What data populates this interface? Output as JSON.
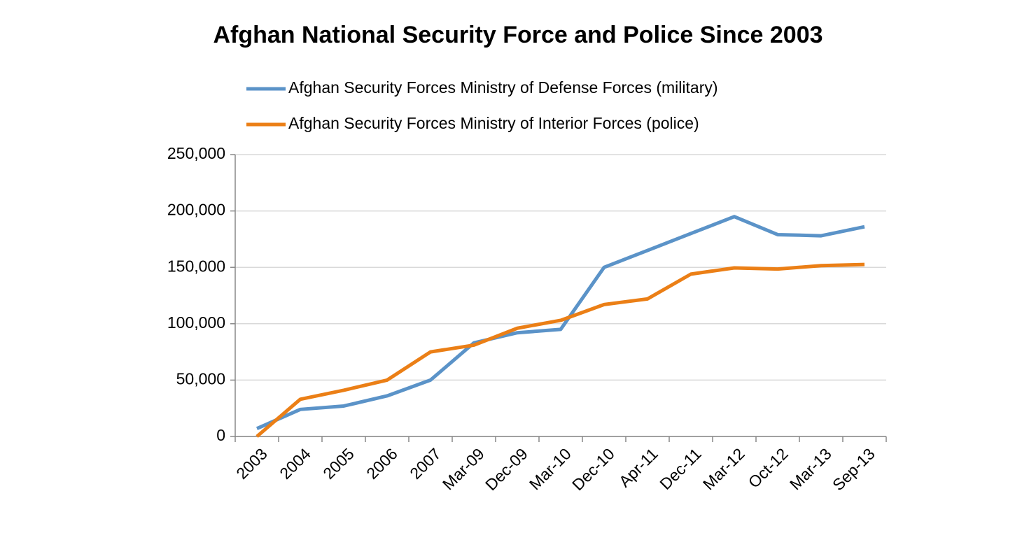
{
  "chart_data": {
    "type": "line",
    "title": "Afghan National Security Force and Police Since 2003",
    "categories": [
      "2003",
      "2004",
      "2005",
      "2006",
      "2007",
      "Mar-09",
      "Dec-09",
      "Mar-10",
      "Dec-10",
      "Apr-11",
      "Dec-11",
      "Mar-12",
      "Oct-12",
      "Mar-13",
      "Sep-13"
    ],
    "series": [
      {
        "name": "Afghan Security Forces Ministry of Defense Forces (military)",
        "color": "#5b93c8",
        "values": [
          7000,
          24000,
          27000,
          36000,
          50000,
          83000,
          92000,
          95000,
          150000,
          165000,
          180000,
          195000,
          179000,
          178000,
          186000
        ]
      },
      {
        "name": "Afghan Security Forces Ministry of Interior Forces (police)",
        "color": "#eb7f16",
        "values": [
          0,
          33000,
          41000,
          50000,
          75000,
          81000,
          96000,
          103000,
          117000,
          122000,
          144000,
          149500,
          148500,
          151500,
          152500
        ]
      }
    ],
    "ylim": [
      0,
      250000
    ],
    "yticks": [
      0,
      {
        "value": 50000,
        "label": "50,000"
      },
      {
        "value": 100000,
        "label": "100,000"
      },
      {
        "value": 150000,
        "label": "150,000"
      },
      {
        "value": 200000,
        "label": "200,000"
      },
      {
        "value": 250000,
        "label": "250,000"
      }
    ],
    "grid": true
  }
}
